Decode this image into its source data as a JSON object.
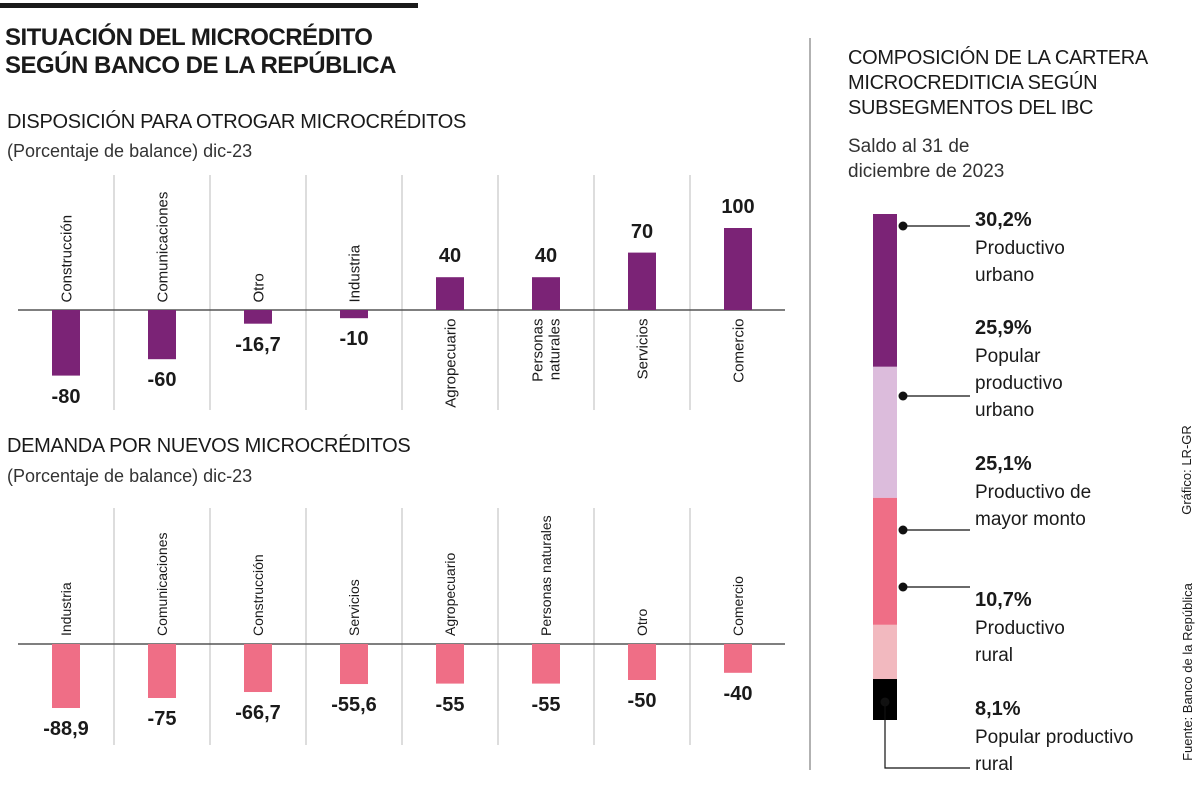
{
  "header": {
    "title": "SITUACIÓN DEL MICROCRÉDITO SEGÚN BANCO DE LA REPÚBLICA"
  },
  "chart_data": [
    {
      "type": "bar",
      "title": "DISPOSICIÓN PARA OTROGAR MICROCRÉDITOS",
      "subtitle": "(Porcentaje de balance) dic-23",
      "categories": [
        "Construcción",
        "Comunicaciones",
        "Otro",
        "Industria",
        "Agropecuario",
        "Personas naturales",
        "Servicios",
        "Comercio"
      ],
      "values": [
        -80,
        -60,
        -16.7,
        -10,
        40,
        40,
        70,
        100
      ],
      "value_labels": [
        "-80",
        "-60",
        "-16,7",
        "-10",
        "40",
        "40",
        "70",
        "100"
      ],
      "color": "#7b2376"
    },
    {
      "type": "bar",
      "title": "DEMANDA POR NUEVOS MICROCRÉDITOS",
      "subtitle": "(Porcentaje de balance) dic-23",
      "categories": [
        "Industria",
        "Comunicaciones",
        "Construcción",
        "Servicios",
        "Agropecuario",
        "Personas naturales",
        "Otro",
        "Comercio"
      ],
      "values": [
        -88.9,
        -75,
        -66.7,
        -55.6,
        -55,
        -55,
        -50,
        -40
      ],
      "value_labels": [
        "-88,9",
        "-75",
        "-66,7",
        "-55,6",
        "-55",
        "-55",
        "-50",
        "-40"
      ],
      "color": "#ef6e86"
    },
    {
      "type": "stacked-bar",
      "title": "COMPOSICIÓN DE LA CARTERA MICROCREDITICIA SEGÚN SUBSEGMENTOS DEL IBC",
      "subtitle": "Saldo al 31 de diciembre de 2023",
      "categories": [
        "Productivo urbano",
        "Popular productivo urbano",
        "Productivo de mayor monto",
        "Productivo rural",
        "Popular productivo rural"
      ],
      "values": [
        30.2,
        25.9,
        25.1,
        10.7,
        8.1
      ],
      "value_labels": [
        "30,2%",
        "25,9%",
        "25,1%",
        "10,7%",
        "8,1%"
      ],
      "colors": [
        "#7b2376",
        "#dcbcdc",
        "#ef6e86",
        "#f2b9bf",
        "#000000"
      ]
    }
  ],
  "footer": {
    "credit": "Gráfico: LR-GR",
    "source": "Fuente: Banco de la República"
  }
}
